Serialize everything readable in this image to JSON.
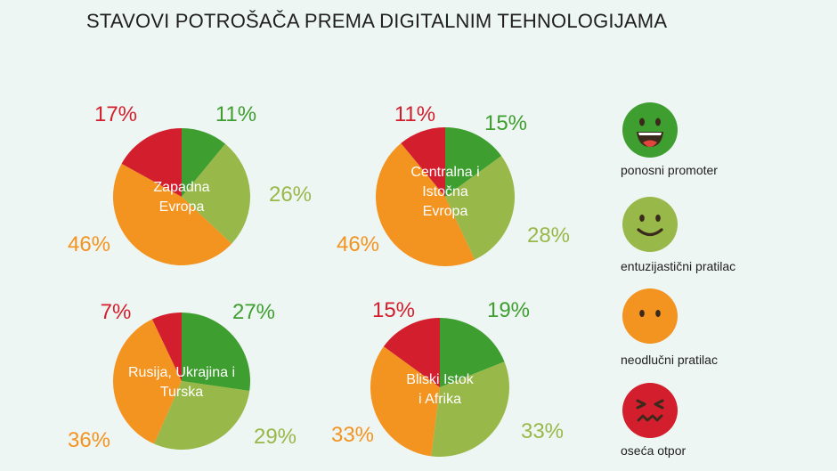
{
  "title": "STAVOVI POTROŠAČA PREMA DIGITALNIM TEHNOLOGIJAMA",
  "colors": {
    "promoter": "#3e9e2f",
    "pratilac": "#98b849",
    "neodlucni": "#f39320",
    "otpor": "#d31e2d",
    "background": "#eef6f3",
    "region_label": "#ffffff"
  },
  "legend": [
    {
      "key": "promoter",
      "label": "ponosni promoter",
      "icon": "laughing-face-icon"
    },
    {
      "key": "pratilac",
      "label": "entuzijastični pratilac",
      "icon": "smiling-face-icon"
    },
    {
      "key": "neodlucni",
      "label": "neodlučni pratilac",
      "icon": "neutral-face-icon"
    },
    {
      "key": "otpor",
      "label": "oseća otpor",
      "icon": "frustrated-face-icon"
    }
  ],
  "chart_data": [
    {
      "type": "pie",
      "region": "Zapadna Evropa",
      "region_lines": [
        "Zapadna",
        "Evropa"
      ],
      "slices": [
        {
          "name": "ponosni promoter",
          "value": 11,
          "label": "11%"
        },
        {
          "name": "entuzijastični pratilac",
          "value": 26,
          "label": "26%"
        },
        {
          "name": "neodlučni pratilac",
          "value": 46,
          "label": "46%"
        },
        {
          "name": "oseća otpor",
          "value": 17,
          "label": "17%"
        }
      ]
    },
    {
      "type": "pie",
      "region": "Centralna i Istočna Evropa",
      "region_lines": [
        "Centralna i",
        "Istočna",
        "Evropa"
      ],
      "slices": [
        {
          "name": "ponosni promoter",
          "value": 15,
          "label": "15%"
        },
        {
          "name": "entuzijastični pratilac",
          "value": 28,
          "label": "28%"
        },
        {
          "name": "neodlučni pratilac",
          "value": 46,
          "label": "46%"
        },
        {
          "name": "oseća otpor",
          "value": 11,
          "label": "11%"
        }
      ]
    },
    {
      "type": "pie",
      "region": "Rusija, Ukrajina i Turska",
      "region_lines": [
        "Rusija, Ukrajina i",
        "Turska"
      ],
      "slices": [
        {
          "name": "ponosni promoter",
          "value": 27,
          "label": "27%"
        },
        {
          "name": "entuzijastični pratilac",
          "value": 29,
          "label": "29%"
        },
        {
          "name": "neodlučni pratilac",
          "value": 36,
          "label": "36%"
        },
        {
          "name": "oseća otpor",
          "value": 7,
          "label": "7%"
        }
      ]
    },
    {
      "type": "pie",
      "region": "Bliski Istok i Afrika",
      "region_lines": [
        "Bliski Istok",
        "i Afrika"
      ],
      "slices": [
        {
          "name": "ponosni promoter",
          "value": 19,
          "label": "19%"
        },
        {
          "name": "entuzijastični pratilac",
          "value": 33,
          "label": "33%"
        },
        {
          "name": "neodlučni pratilac",
          "value": 33,
          "label": "33%"
        },
        {
          "name": "oseća otpor",
          "value": 15,
          "label": "15%"
        }
      ]
    }
  ]
}
